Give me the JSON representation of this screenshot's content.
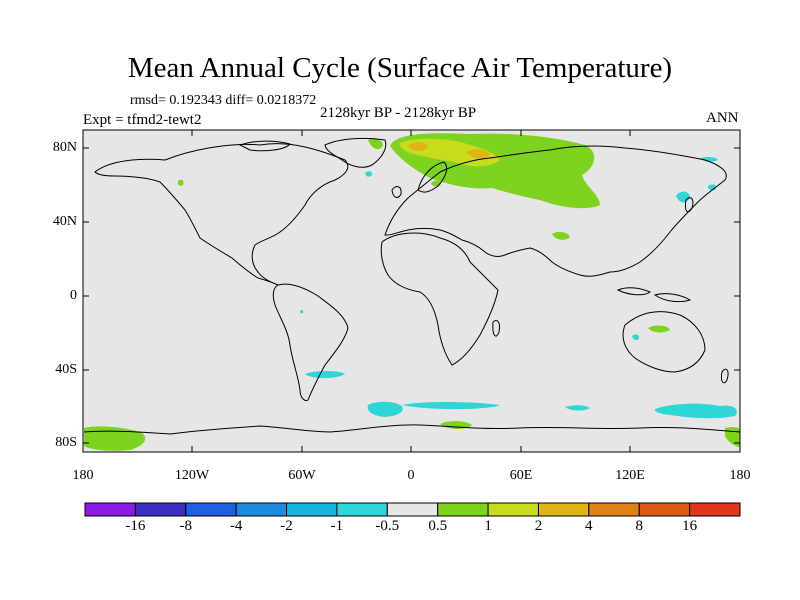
{
  "title": "Mean Annual Cycle (Surface Air Temperature)",
  "stats_line": "rmsd= 0.192343 diff= 0.0218372",
  "period": "2128kyr BP - 2128kyr BP",
  "experiment": "Expt = tfmd2-tewt2",
  "season": "ANN",
  "lat_ticks": [
    "80N",
    "40N",
    "0",
    "40S",
    "80S"
  ],
  "lon_ticks": [
    "180",
    "120W",
    "60W",
    "0",
    "60E",
    "120E",
    "180"
  ],
  "colorbar": {
    "labels": [
      "-16",
      "-8",
      "-4",
      "-2",
      "-1",
      "-0.5",
      "0.5",
      "1",
      "2",
      "4",
      "8",
      "16"
    ],
    "colors": [
      "#8c1ae6",
      "#3c2fc4",
      "#1f5fe0",
      "#1a8be0",
      "#17b4df",
      "#2fd6d6",
      "#e6e6e6",
      "#7ed321",
      "#c8dc1e",
      "#e0b417",
      "#e0821a",
      "#e05a17",
      "#e0361a"
    ]
  },
  "map_colors": {
    "background": "#e6e6e6",
    "coast": "#000000"
  }
}
